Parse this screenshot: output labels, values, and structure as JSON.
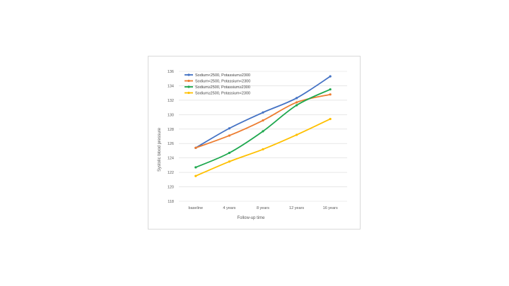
{
  "chart_data": {
    "type": "line",
    "title": "",
    "xlabel": "Follow-up time",
    "ylabel": "Systolic blood pressure",
    "categories": [
      "baseline",
      "4 years",
      "8 years",
      "12 years",
      "16 years"
    ],
    "ylim": [
      118,
      136
    ],
    "yticks": [
      118,
      120,
      122,
      124,
      126,
      128,
      130,
      132,
      134,
      136
    ],
    "grid": true,
    "legend_position": "top-left",
    "series": [
      {
        "name": "Sodium<2500, Potassium≥2300",
        "color": "#4472C4",
        "values": [
          125.4,
          128.1,
          130.3,
          132.3,
          135.3
        ]
      },
      {
        "name": "Sodium<2500, Potassium<2300",
        "color": "#ED7D31",
        "values": [
          125.4,
          127.1,
          129.2,
          131.7,
          132.8
        ]
      },
      {
        "name": "Sodium≥2500, Potassium≥2300",
        "color": "#1FA84F",
        "values": [
          122.7,
          124.7,
          127.7,
          131.3,
          133.5
        ]
      },
      {
        "name": "Sodium≥2500, Potassium<2300",
        "color": "#FFC000",
        "values": [
          121.5,
          123.5,
          125.2,
          127.2,
          129.4
        ]
      }
    ]
  }
}
